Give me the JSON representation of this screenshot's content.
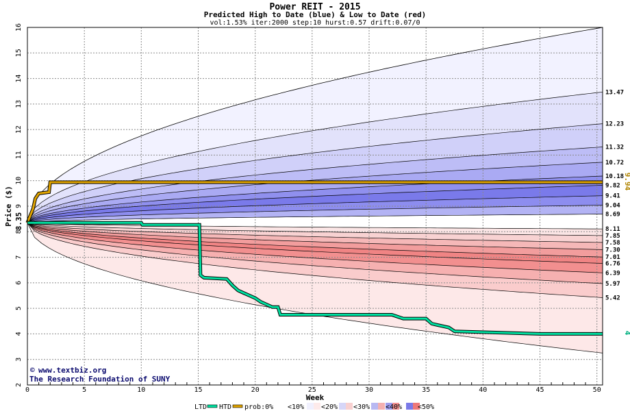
{
  "chart_data": {
    "type": "area",
    "title": "Power REIT - 2015",
    "subtitle": "Predicted High to Date (blue) &  Low to Date (red)",
    "params": "vol:1.53% iter:2000 step:10 hurst:0.57 drift:0.07/0",
    "xlabel": "Week",
    "ylabel": "Price ($)",
    "xlim": [
      0,
      50.5
    ],
    "ylim": [
      2,
      16
    ],
    "xticks": [
      0,
      5,
      10,
      15,
      20,
      25,
      30,
      35,
      40,
      45,
      50
    ],
    "yticks": [
      2,
      3,
      4,
      5,
      6,
      7,
      8,
      9,
      10,
      11,
      12,
      13,
      14,
      15,
      16
    ],
    "grid": true,
    "start_price": 8.35,
    "start_label": "8.35",
    "htd_current": 9.94,
    "htd_label": "9.94",
    "ltd_current": 4,
    "ltd_label": "4",
    "high_band_ends": [
      16.0,
      13.47,
      12.23,
      11.32,
      10.72,
      10.18,
      9.82,
      9.41,
      9.04,
      8.69
    ],
    "low_band_ends": [
      8.11,
      7.85,
      7.58,
      7.3,
      7.01,
      6.76,
      6.39,
      5.97,
      5.42,
      3.25
    ],
    "right_labels": [
      "13.47",
      "12.23",
      "11.32",
      "10.72",
      "10.18",
      "9.82",
      "9.41",
      "9.04",
      "8.69",
      "8.11",
      "7.85",
      "7.58",
      "7.30",
      "7.01",
      "6.76",
      "6.39",
      "5.97",
      "5.42"
    ],
    "htd_path": [
      [
        0,
        8.35
      ],
      [
        0.5,
        8.9
      ],
      [
        0.7,
        9.3
      ],
      [
        1.0,
        9.5
      ],
      [
        1.9,
        9.55
      ],
      [
        2.0,
        9.94
      ],
      [
        50.5,
        9.94
      ]
    ],
    "ltd_path": [
      [
        0,
        8.35
      ],
      [
        10,
        8.35
      ],
      [
        10.1,
        8.27
      ],
      [
        15.1,
        8.27
      ],
      [
        15.2,
        6.3
      ],
      [
        15.5,
        6.2
      ],
      [
        17.5,
        6.15
      ],
      [
        18,
        5.9
      ],
      [
        18.5,
        5.7
      ],
      [
        19,
        5.6
      ],
      [
        19.5,
        5.5
      ],
      [
        20,
        5.4
      ],
      [
        20.5,
        5.25
      ],
      [
        21,
        5.15
      ],
      [
        21.5,
        5.05
      ],
      [
        22,
        5.05
      ],
      [
        22.2,
        4.75
      ],
      [
        32,
        4.75
      ],
      [
        33,
        4.6
      ],
      [
        35,
        4.6
      ],
      [
        35.5,
        4.4
      ],
      [
        36,
        4.35
      ],
      [
        37,
        4.25
      ],
      [
        37.5,
        4.1
      ],
      [
        45,
        4.0
      ],
      [
        50.5,
        4.0
      ]
    ],
    "credit_url": "www.textbiz.org",
    "credit_org": "The Research Foundation of SUNY",
    "legend": {
      "ltd": "LTD",
      "htd": "HTD",
      "prob": "prob:0%",
      "items": [
        "<10%",
        "<20%",
        "<30%",
        "<40%",
        "<50%"
      ]
    },
    "colors": {
      "htd": "#e0a400",
      "ltd": "#00e0a0",
      "blue_bands": [
        "#f2f2ff",
        "#e2e2fb",
        "#d0d0f9",
        "#bdbdf6",
        "#aaaaf3",
        "#9090ee",
        "#7a7aea",
        "#8d8def",
        "#b3b3f4"
      ],
      "red_bands": [
        "#fbe5e5",
        "#f8d2d2",
        "#f5b8b8",
        "#f29d9d",
        "#f08484",
        "#f28f8f",
        "#f6b0b0",
        "#facccc",
        "#fde8e8"
      ]
    }
  }
}
